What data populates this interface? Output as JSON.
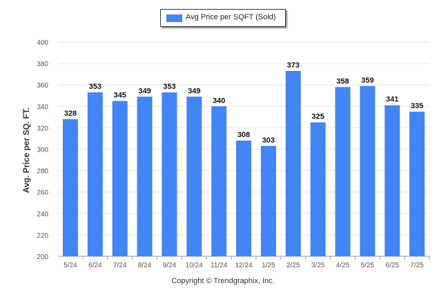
{
  "legend": {
    "label": "Avg Price per SQFT (Sold)"
  },
  "footer": {
    "copyright": "Copyright © Trendgraphix, Inc."
  },
  "chart_data": {
    "type": "bar",
    "categories": [
      "5/24",
      "6/24",
      "7/24",
      "8/24",
      "9/24",
      "10/24",
      "11/24",
      "12/24",
      "1/25",
      "2/25",
      "3/25",
      "4/25",
      "5/25",
      "6/25",
      "7/25"
    ],
    "series": [
      {
        "name": "Avg Price per SQFT (Sold)",
        "values": [
          328,
          353,
          345,
          349,
          353,
          349,
          340,
          308,
          303,
          373,
          325,
          358,
          359,
          341,
          335
        ]
      }
    ],
    "ylabel": "Avg. Price per SQ. FT.",
    "xlabel": "",
    "ylim": [
      200,
      400
    ],
    "yticks": [
      200,
      220,
      240,
      260,
      280,
      300,
      320,
      340,
      360,
      380,
      400
    ],
    "grid": true,
    "legend_position": "top-center",
    "bar_color": "#4285f4",
    "data_labels": true
  }
}
